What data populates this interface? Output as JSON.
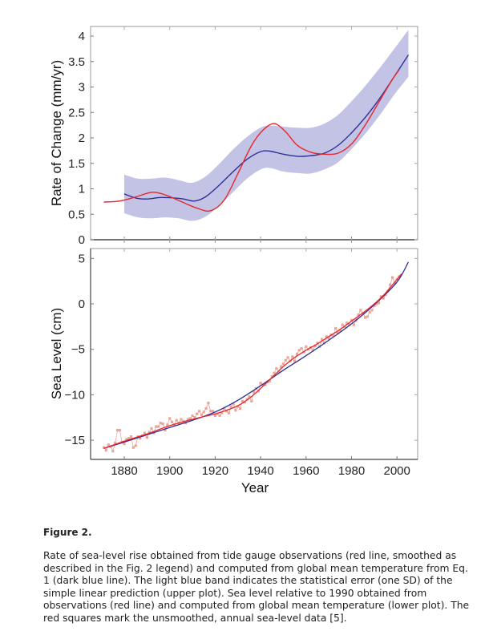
{
  "figure": {
    "title": "Figure 2.",
    "caption": "Rate of sea-level rise obtained from tide gauge observations (red line, smoothed as described in the Fig. 2 legend) and computed from global mean temperature from Eq. 1 (dark blue line). The light blue band indicates the statistical error (one SD) of the simple linear prediction (upper plot). Sea level relative to 1990 obtained from observations (red line) and computed from global mean temperature (lower plot). The red squares mark the unsmoothed, annual sea-level data [5]."
  },
  "colors": {
    "observed": "#e8262e",
    "predicted": "#2c2f96",
    "band": "#c3c3e6",
    "squares": "#eba596",
    "axis": "#333333"
  },
  "chart_data": [
    {
      "type": "line",
      "title": "",
      "xlabel": "",
      "ylabel": "Rate of Change (mm/yr)",
      "xlim": [
        1865,
        2008
      ],
      "ylim": [
        0,
        4.2
      ],
      "yticks": [
        "0",
        "0.5",
        "1",
        "1.5",
        "2",
        "2.5",
        "3",
        "3.5",
        "4"
      ],
      "ytick_values": [
        0,
        0.5,
        1,
        1.5,
        2,
        2.5,
        3,
        3.5,
        4
      ],
      "xtick_values": [
        1880,
        1900,
        1920,
        1940,
        1960,
        1980,
        2000
      ],
      "grid": false,
      "series": [
        {
          "name": "Observed rate (tide gauges, smoothed)",
          "color": "red",
          "x": [
            1871,
            1878,
            1885,
            1892,
            1898,
            1905,
            1912,
            1918,
            1924,
            1930,
            1936,
            1941,
            1946,
            1951,
            1956,
            1962,
            1968,
            1974,
            1980,
            1986,
            1992,
            1998,
            2001
          ],
          "y": [
            0.74,
            0.76,
            0.84,
            0.93,
            0.88,
            0.75,
            0.62,
            0.57,
            0.78,
            1.3,
            1.85,
            2.15,
            2.28,
            2.12,
            1.86,
            1.72,
            1.68,
            1.7,
            1.88,
            2.25,
            2.7,
            3.15,
            3.34
          ]
        },
        {
          "name": "Computed from global mean temperature (Eq. 1)",
          "color": "dark blue",
          "x": [
            1880,
            1885,
            1890,
            1896,
            1902,
            1906,
            1911,
            1916,
            1922,
            1928,
            1934,
            1940,
            1944,
            1950,
            1956,
            1962,
            1968,
            1974,
            1980,
            1986,
            1992,
            1998,
            2005
          ],
          "y": [
            0.9,
            0.82,
            0.8,
            0.83,
            0.82,
            0.8,
            0.76,
            0.85,
            1.08,
            1.34,
            1.58,
            1.73,
            1.74,
            1.68,
            1.64,
            1.65,
            1.7,
            1.85,
            2.1,
            2.4,
            2.75,
            3.15,
            3.63
          ]
        }
      ],
      "band": {
        "name": "One SD statistical error of linear prediction",
        "x": [
          1880,
          1886,
          1892,
          1898,
          1904,
          1910,
          1916,
          1922,
          1928,
          1934,
          1940,
          1944,
          1950,
          1956,
          1962,
          1968,
          1974,
          1980,
          1986,
          1992,
          1998,
          2005
        ],
        "upper": [
          1.28,
          1.2,
          1.2,
          1.22,
          1.17,
          1.12,
          1.25,
          1.5,
          1.78,
          2.02,
          2.2,
          2.24,
          2.22,
          2.2,
          2.2,
          2.28,
          2.45,
          2.72,
          3.02,
          3.35,
          3.7,
          4.12
        ],
        "lower": [
          0.52,
          0.44,
          0.42,
          0.44,
          0.42,
          0.37,
          0.46,
          0.68,
          0.94,
          1.2,
          1.38,
          1.41,
          1.34,
          1.31,
          1.3,
          1.38,
          1.52,
          1.78,
          2.08,
          2.42,
          2.8,
          3.2
        ]
      }
    },
    {
      "type": "line",
      "title": "",
      "xlabel": "Year",
      "ylabel": "Sea Level (cm)",
      "xlim": [
        1865,
        2008
      ],
      "ylim": [
        -17,
        6.1
      ],
      "yticks": [
        "5",
        "0",
        "−5",
        "−10",
        "−15"
      ],
      "ytick_values": [
        5,
        0,
        -5,
        -10,
        -15
      ],
      "xticks": [
        "1880",
        "1900",
        "1920",
        "1940",
        "1960",
        "1980",
        "2000"
      ],
      "xtick_values": [
        1880,
        1900,
        1920,
        1940,
        1960,
        1980,
        2000
      ],
      "grid": false,
      "series": [
        {
          "name": "Observed sea level (smoothed)",
          "color": "red",
          "x": [
            1871,
            1880,
            1890,
            1900,
            1910,
            1920,
            1925,
            1930,
            1935,
            1940,
            1945,
            1950,
            1955,
            1960,
            1965,
            1970,
            1975,
            1980,
            1985,
            1990,
            1995,
            2002
          ],
          "y": [
            -15.9,
            -15.1,
            -14.3,
            -13.4,
            -12.7,
            -12.1,
            -11.7,
            -11.2,
            -10.4,
            -9.3,
            -8.1,
            -6.9,
            -5.9,
            -5.1,
            -4.4,
            -3.6,
            -2.8,
            -1.9,
            -1.0,
            0.0,
            1.2,
            3.3
          ]
        },
        {
          "name": "Computed from global mean temperature",
          "color": "dark blue",
          "x": [
            1871,
            1880,
            1890,
            1900,
            1910,
            1920,
            1930,
            1940,
            1950,
            1960,
            1970,
            1980,
            1990,
            2000,
            2005
          ],
          "y": [
            -15.9,
            -15.2,
            -14.4,
            -13.6,
            -12.8,
            -11.9,
            -10.6,
            -9.0,
            -7.3,
            -5.7,
            -4.0,
            -2.2,
            -0.1,
            2.4,
            4.6
          ]
        },
        {
          "name": "Annual sea-level data (unsmoothed)",
          "color": "red squares",
          "x": [
            1871,
            1872,
            1873,
            1874,
            1875,
            1876,
            1877,
            1878,
            1879,
            1880,
            1881,
            1882,
            1883,
            1884,
            1885,
            1886,
            1887,
            1888,
            1889,
            1890,
            1891,
            1892,
            1893,
            1894,
            1895,
            1896,
            1897,
            1898,
            1899,
            1900,
            1901,
            1902,
            1903,
            1904,
            1905,
            1906,
            1907,
            1908,
            1909,
            1910,
            1911,
            1912,
            1913,
            1914,
            1915,
            1916,
            1917,
            1918,
            1919,
            1920,
            1921,
            1922,
            1923,
            1924,
            1925,
            1926,
            1927,
            1928,
            1929,
            1930,
            1931,
            1932,
            1933,
            1934,
            1935,
            1936,
            1937,
            1938,
            1939,
            1940,
            1941,
            1942,
            1943,
            1944,
            1945,
            1946,
            1947,
            1948,
            1949,
            1950,
            1951,
            1952,
            1953,
            1954,
            1955,
            1956,
            1957,
            1958,
            1959,
            1960,
            1961,
            1962,
            1963,
            1964,
            1965,
            1966,
            1967,
            1968,
            1969,
            1970,
            1971,
            1972,
            1973,
            1974,
            1975,
            1976,
            1977,
            1978,
            1979,
            1980,
            1981,
            1982,
            1983,
            1984,
            1985,
            1986,
            1987,
            1988,
            1989,
            1990,
            1991,
            1992,
            1993,
            1994,
            1995,
            1996,
            1997,
            1998,
            1999,
            2000,
            2001
          ],
          "y": [
            -15.8,
            -16.1,
            -15.5,
            -15.7,
            -16.2,
            -15.3,
            -13.9,
            -13.9,
            -15.2,
            -15.4,
            -14.9,
            -14.8,
            -14.6,
            -15.8,
            -15.6,
            -14.6,
            -14.8,
            -14.5,
            -14.2,
            -14.7,
            -14.1,
            -13.7,
            -14.2,
            -13.5,
            -13.5,
            -13.1,
            -13.2,
            -13.9,
            -13.3,
            -12.6,
            -13.0,
            -13.3,
            -12.8,
            -13.1,
            -12.7,
            -12.9,
            -13.1,
            -12.7,
            -12.6,
            -12.3,
            -12.5,
            -12.1,
            -11.8,
            -12.2,
            -11.9,
            -11.5,
            -10.9,
            -11.8,
            -11.8,
            -12.3,
            -12.1,
            -12.3,
            -12.0,
            -11.5,
            -11.8,
            -12.0,
            -11.3,
            -11.0,
            -11.7,
            -11.3,
            -11.5,
            -10.7,
            -10.8,
            -10.5,
            -10.2,
            -10.7,
            -9.7,
            -9.3,
            -9.6,
            -8.7,
            -8.9,
            -8.9,
            -8.6,
            -8.5,
            -8.0,
            -7.6,
            -7.1,
            -7.5,
            -6.9,
            -6.6,
            -6.2,
            -5.9,
            -6.3,
            -5.8,
            -6.3,
            -5.5,
            -5.1,
            -4.9,
            -5.3,
            -4.7,
            -5.0,
            -4.8,
            -5.1,
            -4.6,
            -4.3,
            -4.7,
            -3.9,
            -4.3,
            -3.6,
            -3.8,
            -3.4,
            -3.5,
            -2.7,
            -3.2,
            -2.9,
            -2.3,
            -2.5,
            -2.1,
            -2.3,
            -1.8,
            -2.3,
            -1.8,
            -1.2,
            -0.7,
            -1.0,
            -1.5,
            -1.4,
            -0.9,
            -0.7,
            -0.2,
            0.0,
            0.1,
            0.8,
            0.6,
            1.0,
            1.4,
            2.1,
            2.9,
            2.3,
            2.7,
            3.0
          ]
        }
      ]
    }
  ]
}
